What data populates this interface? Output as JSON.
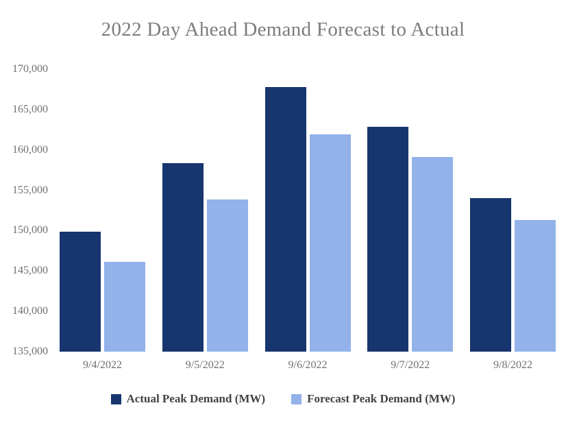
{
  "chart_data": {
    "type": "bar",
    "title": "2022 Day Ahead Demand Forecast to Actual",
    "xlabel": "",
    "ylabel": "",
    "categories": [
      "9/4/2022",
      "9/5/2022",
      "9/6/2022",
      "9/7/2022",
      "9/8/2022"
    ],
    "series": [
      {
        "name": "Actual Peak Demand (MW)",
        "key": "actual",
        "color": "#17356e",
        "values": [
          149900,
          158400,
          167800,
          162900,
          154000
        ]
      },
      {
        "name": "Forecast Peak Demand (MW)",
        "key": "forecast",
        "color": "#92b2e9",
        "values": [
          146100,
          153900,
          161900,
          159100,
          151300
        ]
      }
    ],
    "ylim": [
      135000,
      170000
    ],
    "ytick_step": 5000,
    "ytick_labels": [
      "135,000",
      "140,000",
      "145,000",
      "150,000",
      "155,000",
      "160,000",
      "165,000",
      "170,000"
    ],
    "grid": false,
    "legend_position": "bottom",
    "colors": {
      "background": "#ffffff",
      "title_text": "#7c7c7c",
      "axis_text": "#6f6f6f",
      "legend_text": "#424242"
    }
  }
}
